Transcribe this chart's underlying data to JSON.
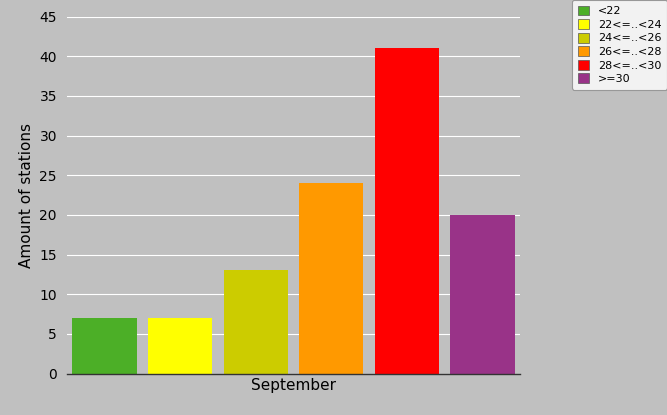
{
  "categories": [
    "<22",
    "22<=..<24",
    "24<=..<26",
    "26<=..<28",
    "28<=..<30",
    ">=30"
  ],
  "values": [
    7,
    7,
    13,
    24,
    41,
    20
  ],
  "colors": [
    "#4caf27",
    "#ffff00",
    "#cccc00",
    "#ff9900",
    "#ff0000",
    "#993388"
  ],
  "xlabel": "September",
  "ylabel": "Amount of stations",
  "ylim": [
    0,
    45
  ],
  "yticks": [
    0,
    5,
    10,
    15,
    20,
    25,
    30,
    35,
    40,
    45
  ],
  "background_color": "#c0c0c0",
  "plot_bg_color": "#c0c0c0",
  "bar_width": 0.85,
  "figsize": [
    6.67,
    4.15
  ],
  "dpi": 100
}
